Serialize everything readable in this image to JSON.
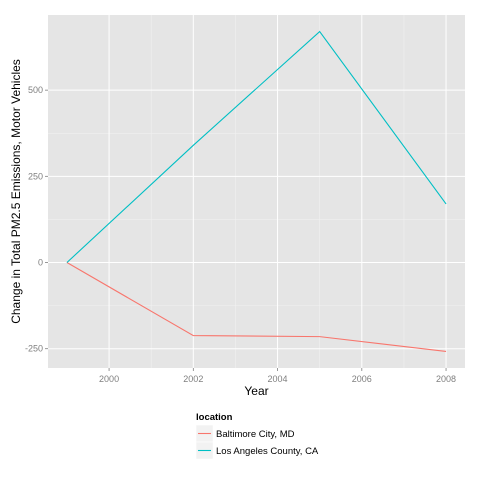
{
  "chart_data": {
    "type": "line",
    "title": "",
    "xlabel": "Year",
    "ylabel": "Change in Total PM2.5 Emissions, Motor Vehicles",
    "xlim": [
      1998.55,
      2008.45
    ],
    "ylim": [
      -306,
      718
    ],
    "x_ticks": [
      2000,
      2002,
      2004,
      2006,
      2008
    ],
    "x_tick_labels": [
      "2000",
      "2002",
      "2004",
      "2006",
      "2008"
    ],
    "y_ticks": [
      -250,
      0,
      250,
      500
    ],
    "y_tick_labels": [
      "-250",
      "0",
      "250",
      "500"
    ],
    "grid": true,
    "legend": {
      "title": "location",
      "placement": "bottom"
    },
    "series": [
      {
        "name": "Baltimore City, MD",
        "color": "#F8766D",
        "x": [
          1999,
          2002,
          2005,
          2008
        ],
        "y": [
          0,
          -212,
          -215,
          -258
        ]
      },
      {
        "name": "Los Angeles County, CA",
        "color": "#00BFC4",
        "x": [
          1999,
          2002,
          2005,
          2008
        ],
        "y": [
          0,
          340,
          670,
          170
        ]
      }
    ]
  }
}
